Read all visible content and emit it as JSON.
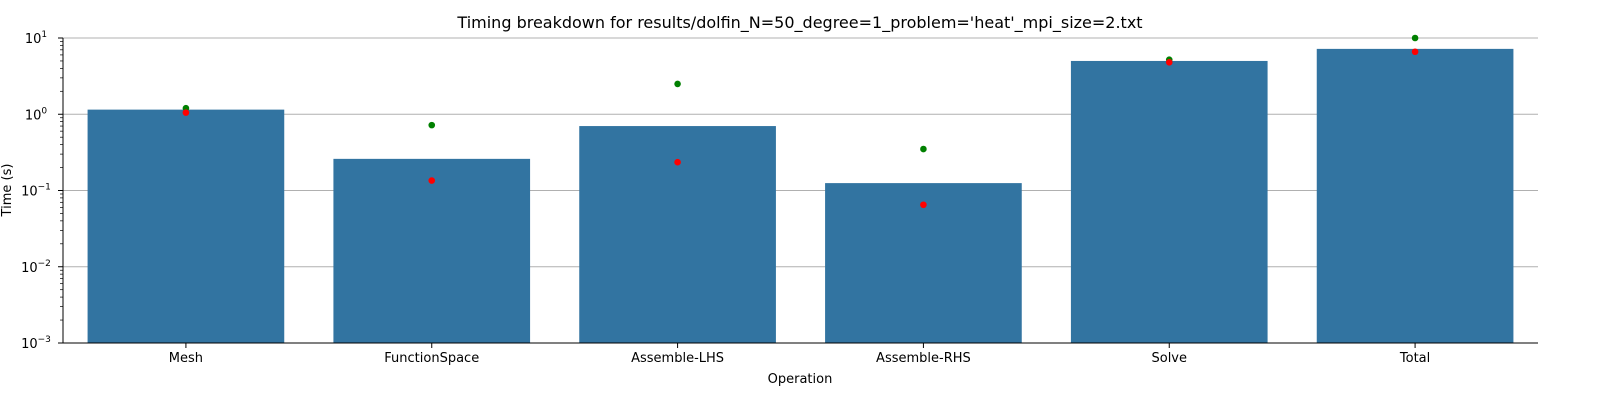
{
  "chart_data": {
    "type": "bar",
    "title": "Timing breakdown for results/dolfin_N=50_degree=1_problem='heat'_mpi_size=2.txt",
    "xlabel": "Operation",
    "ylabel": "Time (s)",
    "yscale": "log",
    "ylim": [
      0.001,
      10
    ],
    "grid": "y-major",
    "categories": [
      "Mesh",
      "FunctionSpace",
      "Assemble-LHS",
      "Assemble-RHS",
      "Solve",
      "Total"
    ],
    "series": [
      {
        "type": "bar",
        "values": [
          1.15,
          0.26,
          0.7,
          0.125,
          5.0,
          7.2
        ]
      },
      {
        "type": "scatter",
        "values": [
          1.2,
          0.72,
          2.5,
          0.35,
          5.2,
          10.0
        ]
      },
      {
        "type": "scatter",
        "values": [
          1.05,
          0.135,
          0.235,
          0.065,
          4.8,
          6.6
        ]
      }
    ],
    "y_ticks": [
      {
        "value": 0.001,
        "base": "10",
        "exp": "−3"
      },
      {
        "value": 0.01,
        "base": "10",
        "exp": "−2"
      },
      {
        "value": 0.1,
        "base": "10",
        "exp": "−1"
      },
      {
        "value": 1,
        "base": "10",
        "exp": "0"
      },
      {
        "value": 10,
        "base": "10",
        "exp": "1"
      }
    ],
    "colors": {
      "bar": "#3274a1",
      "max_marker": "#008000",
      "min_marker": "#ff0000",
      "grid": "#b0b0b0"
    }
  }
}
